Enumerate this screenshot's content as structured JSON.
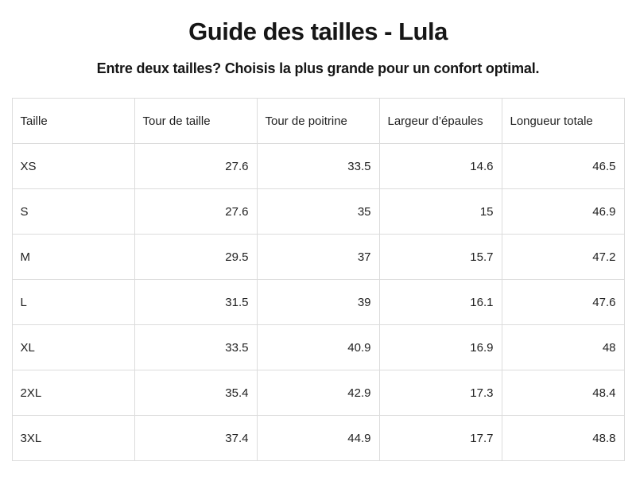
{
  "page": {
    "title": "Guide des tailles - Lula",
    "subtitle": "Entre deux tailles? Choisis la plus grande pour un confort optimal."
  },
  "table": {
    "columns": [
      "Taille",
      "Tour de taille",
      "Tour de poitrine",
      "Largeur d’épaules",
      "Longueur totale"
    ],
    "rows": [
      {
        "size": "XS",
        "values": [
          "27.6",
          "33.5",
          "14.6",
          "46.5"
        ]
      },
      {
        "size": "S",
        "values": [
          "27.6",
          "35",
          "15",
          "46.9"
        ]
      },
      {
        "size": "M",
        "values": [
          "29.5",
          "37",
          "15.7",
          "47.2"
        ]
      },
      {
        "size": "L",
        "values": [
          "31.5",
          "39",
          "16.1",
          "47.6"
        ]
      },
      {
        "size": "XL",
        "values": [
          "33.5",
          "40.9",
          "16.9",
          "48"
        ]
      },
      {
        "size": "2XL",
        "values": [
          "35.4",
          "42.9",
          "17.3",
          "48.4"
        ]
      },
      {
        "size": "3XL",
        "values": [
          "37.4",
          "44.9",
          "17.7",
          "48.8"
        ]
      }
    ]
  },
  "colors": {
    "background": "#ffffff",
    "text": "#1f1f1f",
    "heading_text": "#161616",
    "table_border": "#dcdcdc"
  }
}
